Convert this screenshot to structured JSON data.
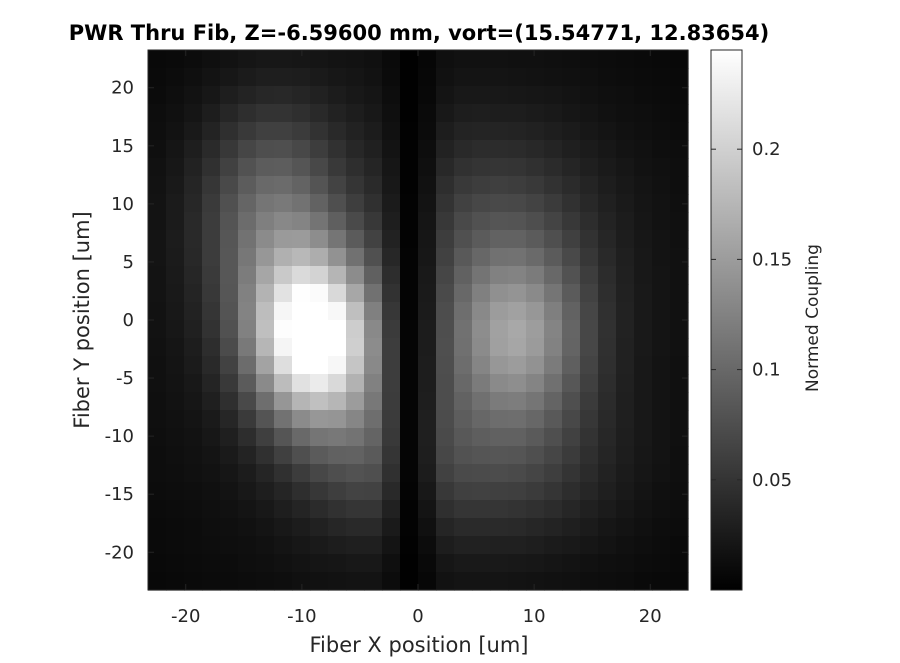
{
  "chart_data": {
    "type": "heatmap",
    "title": "PWR Thru Fib, Z=-6.59600 mm, vort=(15.54771, 12.83654)",
    "xlabel": "Fiber X position [um]",
    "ylabel": "Fiber Y position [um]",
    "colorbar_label": "Normed Coupling",
    "colormap": "gray",
    "xlim": [
      -23.25,
      23.25
    ],
    "ylim": [
      -23.25,
      23.25
    ],
    "clim": [
      0,
      0.245
    ],
    "grid": {
      "n": 30,
      "cell_um": 1.55
    },
    "x_ticks": [
      -20,
      -10,
      0,
      10,
      20
    ],
    "x_tick_labels": [
      "-20",
      "-10",
      "0",
      "10",
      "20"
    ],
    "y_ticks": [
      20,
      15,
      10,
      5,
      0,
      -5,
      -10,
      -15,
      -20
    ],
    "y_tick_labels": [
      "20",
      "15",
      "10",
      "5",
      "0",
      "-5",
      "-10",
      "-15",
      "-20"
    ],
    "colorbar_ticks": [
      0.2,
      0.15,
      0.1,
      0.05
    ],
    "colorbar_tick_labels": [
      "0.2",
      "0.15",
      "0.1",
      "0.05"
    ],
    "features": {
      "left_lobe": {
        "x": -9,
        "y": -1.5,
        "peak": 0.245
      },
      "right_lobe": {
        "x": 8.5,
        "y": -1.5,
        "peak": 0.12
      },
      "null_center": {
        "x": -0.5,
        "y": 0
      }
    }
  }
}
